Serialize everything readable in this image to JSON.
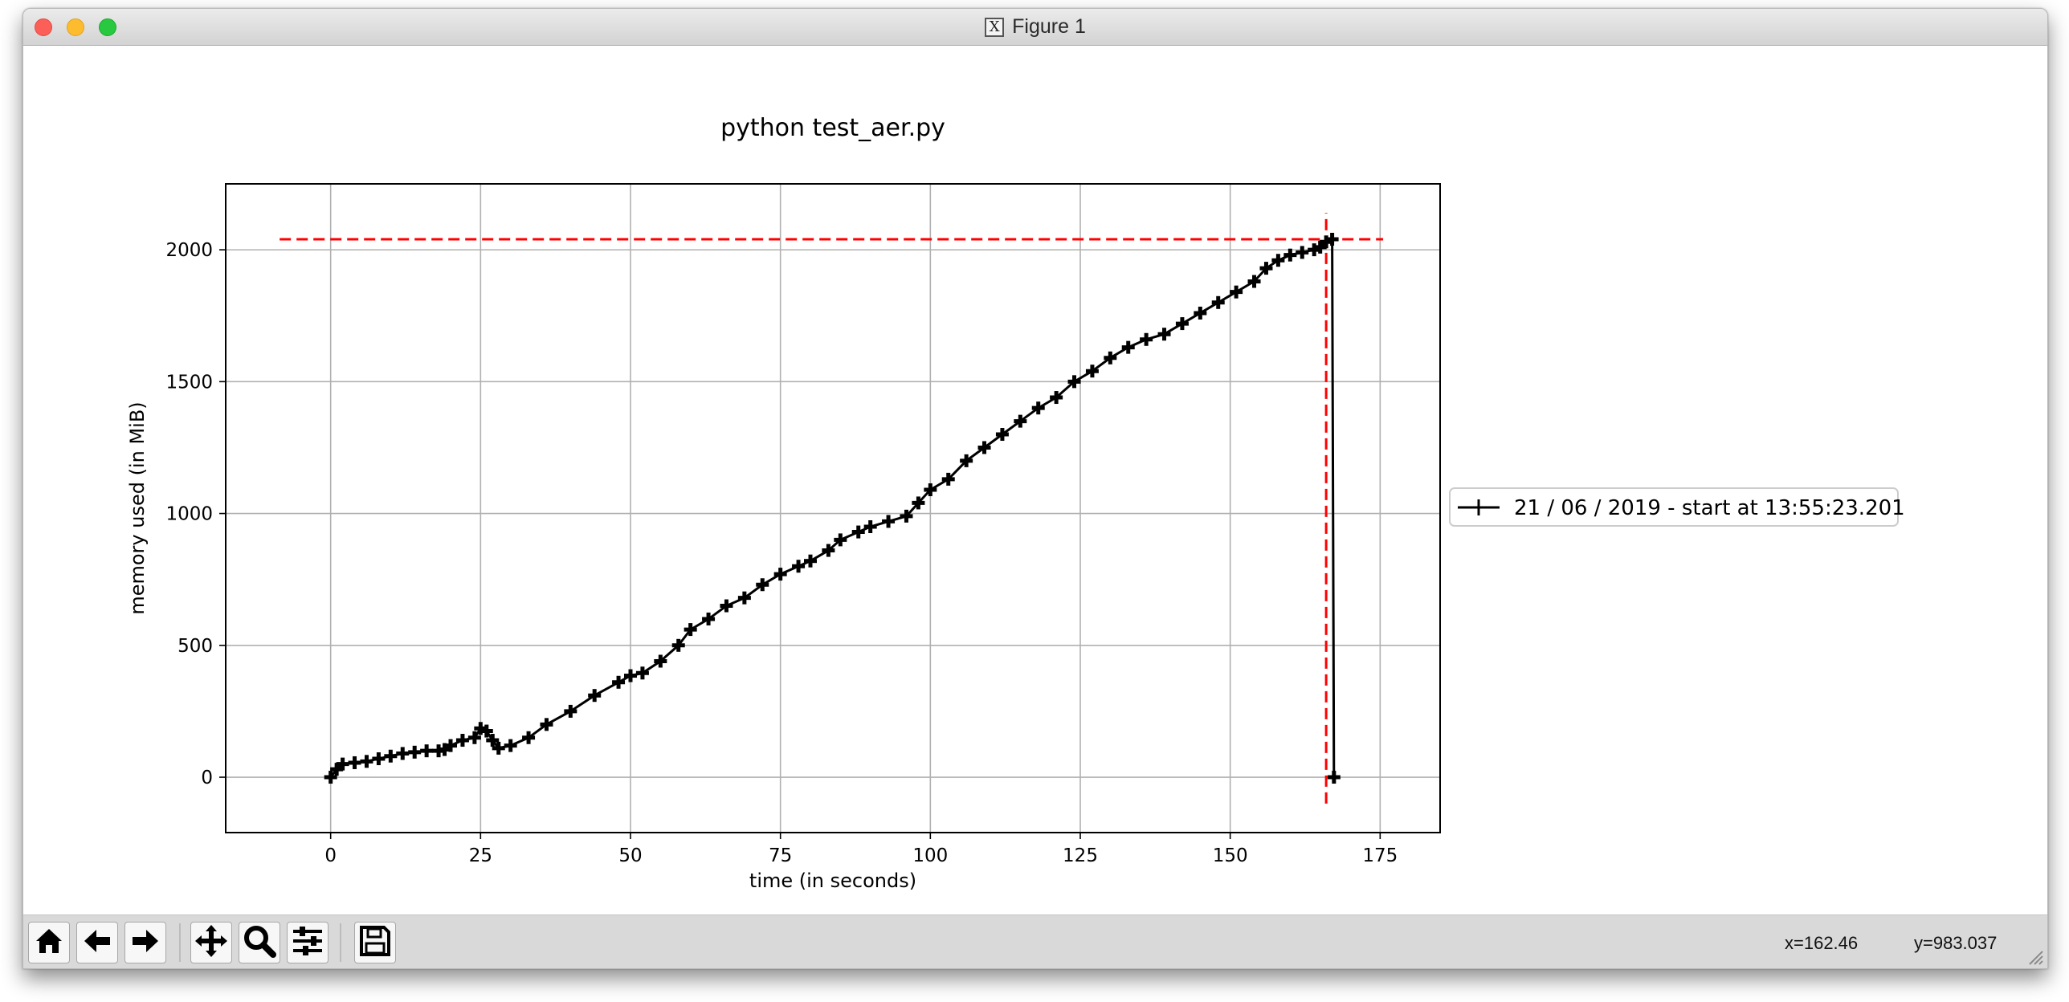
{
  "window": {
    "title": "Figure 1",
    "title_icon": "x11-icon"
  },
  "toolbar": {
    "buttons": [
      {
        "name": "home-button",
        "icon": "home-icon"
      },
      {
        "name": "back-button",
        "icon": "arrow-left-icon"
      },
      {
        "name": "forward-button",
        "icon": "arrow-right-icon"
      },
      {
        "name": "pan-button",
        "icon": "move-icon"
      },
      {
        "name": "zoom-button",
        "icon": "magnifier-icon"
      },
      {
        "name": "configure-subplots-button",
        "icon": "sliders-icon"
      },
      {
        "name": "save-button",
        "icon": "floppy-disk-icon"
      }
    ],
    "x_readout": "x=162.46",
    "y_readout": "y=983.037"
  },
  "chart_data": {
    "type": "line",
    "title": "python test_aer.py",
    "xlabel": "time (in seconds)",
    "ylabel": "memory used (in MiB)",
    "xlim": [
      -17.5,
      185
    ],
    "ylim": [
      -210,
      2250
    ],
    "xticks": [
      0,
      25,
      50,
      75,
      100,
      125,
      150,
      175
    ],
    "xtick_labels": [
      "0",
      "25",
      "50",
      "75",
      "100",
      "125",
      "150",
      "175"
    ],
    "yticks": [
      0,
      500,
      1000,
      1500,
      2000
    ],
    "ytick_labels": [
      "0",
      "500",
      "1000",
      "1500",
      "2000"
    ],
    "grid": true,
    "legend_placement": "right-outside",
    "series": [
      {
        "name": "21 / 06 / 2019 - start at 13:55:23.201",
        "color": "#000000",
        "marker": "+",
        "x": [
          0,
          1,
          2,
          4,
          6,
          8,
          10,
          12,
          14,
          16,
          18,
          19,
          20,
          22,
          24,
          25,
          26,
          27,
          28,
          30,
          33,
          36,
          40,
          44,
          48,
          50,
          52,
          55,
          58,
          60,
          63,
          66,
          69,
          72,
          75,
          78,
          80,
          83,
          85,
          88,
          90,
          93,
          96,
          98,
          100,
          103,
          106,
          109,
          112,
          115,
          118,
          121,
          124,
          127,
          130,
          133,
          136,
          139,
          142,
          145,
          148,
          151,
          154,
          156,
          158,
          160,
          162,
          164,
          165,
          166,
          167,
          167.3
        ],
        "values": [
          0,
          30,
          50,
          55,
          60,
          70,
          80,
          90,
          95,
          100,
          100,
          105,
          120,
          140,
          150,
          185,
          175,
          140,
          110,
          120,
          150,
          200,
          250,
          310,
          360,
          385,
          395,
          440,
          500,
          560,
          600,
          650,
          680,
          730,
          770,
          800,
          820,
          860,
          900,
          930,
          950,
          970,
          990,
          1040,
          1090,
          1130,
          1200,
          1250,
          1300,
          1350,
          1400,
          1440,
          1500,
          1540,
          1590,
          1630,
          1660,
          1680,
          1720,
          1760,
          1800,
          1840,
          1880,
          1930,
          1960,
          1980,
          1990,
          2000,
          2010,
          2030,
          2040,
          0
        ]
      }
    ],
    "reference_lines": [
      {
        "orientation": "horizontal",
        "value": 2040,
        "from": -8.5,
        "to": 175.5,
        "color": "#ff0000",
        "style": "dashed"
      },
      {
        "orientation": "vertical",
        "value": 166,
        "from": -100,
        "to": 2140,
        "color": "#ff0000",
        "style": "dashed"
      }
    ]
  }
}
